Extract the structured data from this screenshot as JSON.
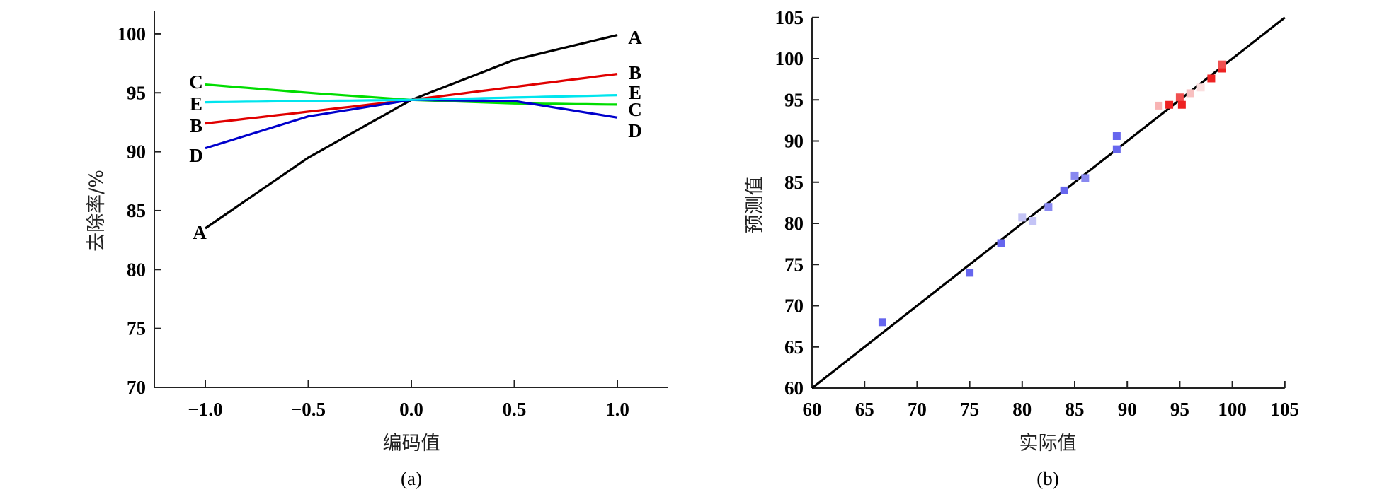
{
  "chart_data": [
    {
      "type": "line",
      "panel": "(a)",
      "xlabel": "编码值",
      "ylabel": "去除率/%",
      "xlim": [
        -1.25,
        1.25
      ],
      "ylim": [
        70,
        102
      ],
      "xticks": [
        "−1.0",
        "−0.5",
        "0.0",
        "0.5",
        "1.0"
      ],
      "yticks": [
        "70",
        "75",
        "80",
        "85",
        "90",
        "95",
        "100"
      ],
      "grid": false,
      "x": [
        -1.0,
        -0.5,
        0.0,
        0.5,
        1.0
      ],
      "series": [
        {
          "name": "A",
          "color": "#000000",
          "values": [
            83.5,
            89.5,
            94.4,
            97.8,
            99.9
          ]
        },
        {
          "name": "B",
          "color": "#e00000",
          "values": [
            92.4,
            93.4,
            94.4,
            95.5,
            96.6
          ]
        },
        {
          "name": "C",
          "color": "#00dd00",
          "values": [
            95.7,
            95.0,
            94.4,
            94.1,
            94.0
          ]
        },
        {
          "name": "D",
          "color": "#0000cc",
          "values": [
            90.3,
            93.0,
            94.4,
            94.3,
            92.9
          ]
        },
        {
          "name": "E",
          "color": "#00e5ee",
          "values": [
            94.2,
            94.3,
            94.4,
            94.6,
            94.8
          ]
        }
      ],
      "left_labels": [
        "C",
        "E",
        "B",
        "D",
        "A"
      ],
      "right_labels": [
        "A",
        "B",
        "E",
        "C",
        "D"
      ]
    },
    {
      "type": "scatter",
      "panel": "(b)",
      "xlabel": "实际值",
      "ylabel": "预测值",
      "xlim": [
        60,
        105
      ],
      "ylim": [
        60,
        105
      ],
      "xticks": [
        "60",
        "65",
        "70",
        "75",
        "80",
        "85",
        "90",
        "95",
        "100",
        "105"
      ],
      "yticks": [
        "60",
        "65",
        "70",
        "75",
        "80",
        "85",
        "90",
        "95",
        "100",
        "105"
      ],
      "grid": false,
      "fit_line": {
        "from": [
          60,
          60
        ],
        "to": [
          105,
          105
        ],
        "color": "#000000"
      },
      "points": [
        {
          "x": 66.7,
          "y": 68.0,
          "color": "#6666ee"
        },
        {
          "x": 75.0,
          "y": 74.0,
          "color": "#6666ee"
        },
        {
          "x": 78.0,
          "y": 77.6,
          "color": "#6666ee"
        },
        {
          "x": 80.0,
          "y": 80.7,
          "color": "#c4c4f6"
        },
        {
          "x": 81.0,
          "y": 80.3,
          "color": "#c4c4f6"
        },
        {
          "x": 82.5,
          "y": 82.0,
          "color": "#8888f0"
        },
        {
          "x": 84.0,
          "y": 84.0,
          "color": "#6666ee"
        },
        {
          "x": 85.0,
          "y": 85.8,
          "color": "#8888f0"
        },
        {
          "x": 86.0,
          "y": 85.5,
          "color": "#8888f0"
        },
        {
          "x": 89.0,
          "y": 90.6,
          "color": "#6666ee"
        },
        {
          "x": 89.0,
          "y": 89.0,
          "color": "#6666ee"
        },
        {
          "x": 93.0,
          "y": 94.3,
          "color": "#f8b4b4"
        },
        {
          "x": 94.0,
          "y": 94.4,
          "color": "#ee2222"
        },
        {
          "x": 95.0,
          "y": 95.3,
          "color": "#f05050"
        },
        {
          "x": 95.2,
          "y": 94.4,
          "color": "#ee2222"
        },
        {
          "x": 96.0,
          "y": 95.8,
          "color": "#f8c0c0"
        },
        {
          "x": 97.0,
          "y": 96.5,
          "color": "#fbe0e0"
        },
        {
          "x": 98.0,
          "y": 97.6,
          "color": "#ee2222"
        },
        {
          "x": 99.0,
          "y": 98.8,
          "color": "#ee2222"
        },
        {
          "x": 99.0,
          "y": 99.3,
          "color": "#f05050"
        }
      ]
    }
  ],
  "panels": {
    "a": {
      "caption": "(a)",
      "xlabel": "编码值",
      "ylabel": "去除率/%"
    },
    "b": {
      "caption": "(b)",
      "xlabel": "实际值",
      "ylabel": "预测值"
    }
  }
}
